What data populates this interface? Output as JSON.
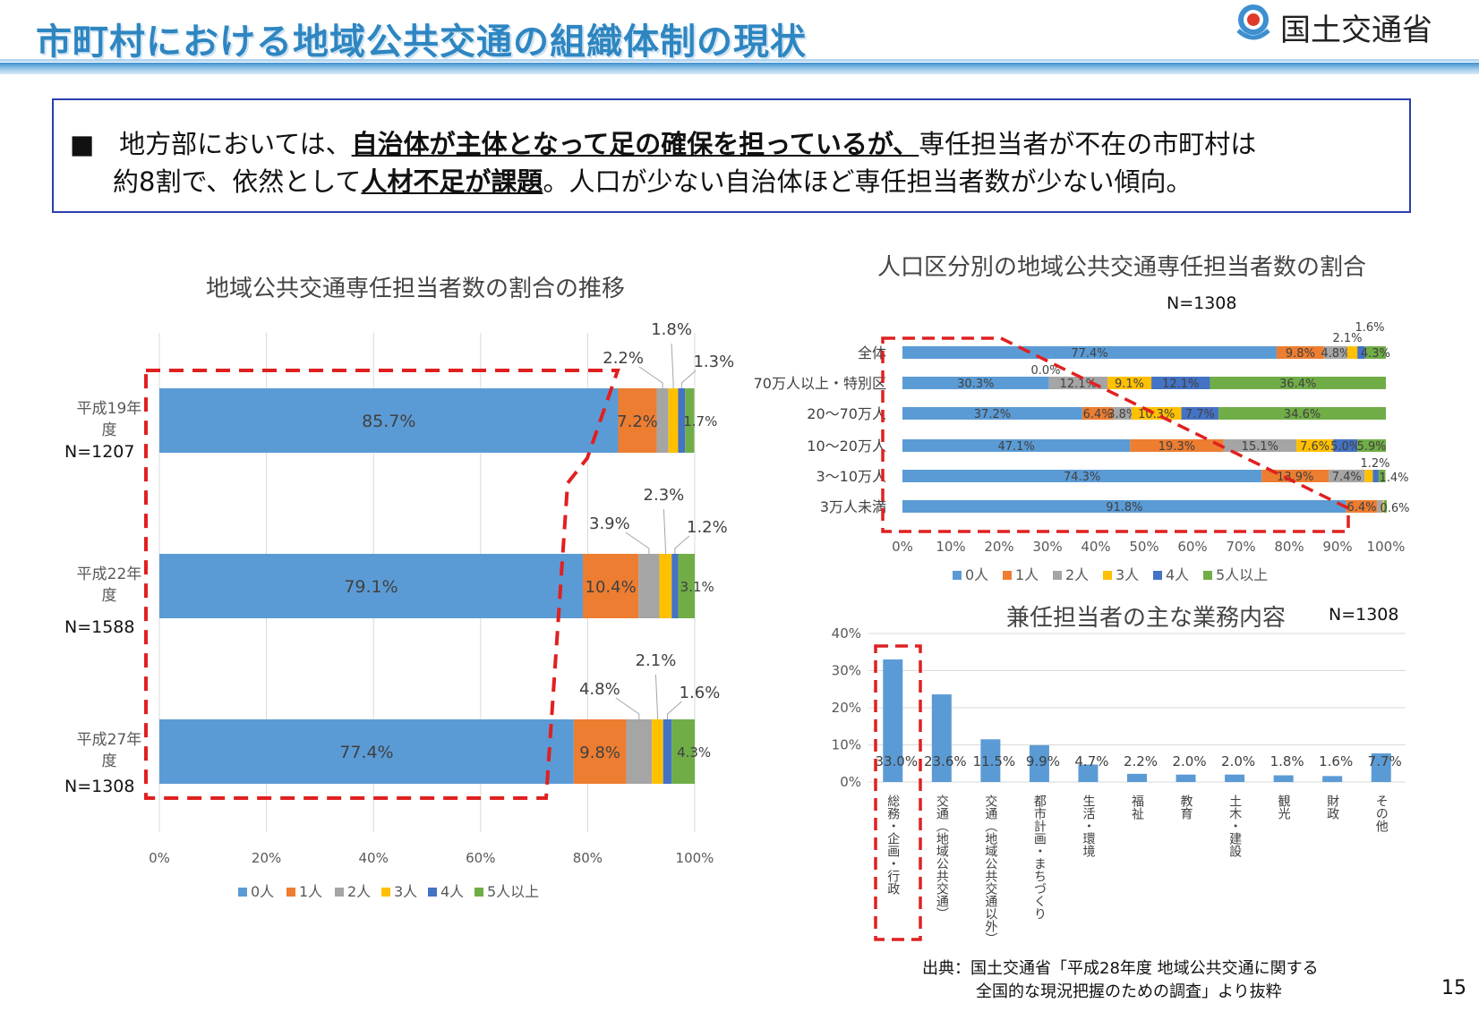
{
  "header": {
    "title": "市町村における地域公共交通の組織体制の現状",
    "ministry": "国土交通省"
  },
  "summary": {
    "bullet": "■",
    "line1_a": "地方部においては、",
    "line1_b": "自治体が主体となって足の確保を担っているが、",
    "line1_c": "専任担当者が不在の市町村は",
    "line2_a": "約8割で、依然として",
    "line2_b": "人材不足が課題",
    "line2_c": "。人口が少ない自治体ほど専任担当者数が少ない傾向。"
  },
  "chart1_labels": {
    "n": [
      "N=1207",
      "N=1588",
      "N=1308"
    ]
  },
  "chart2_labels": {
    "n": "N=1308"
  },
  "chart3_labels": {
    "n": "N=1308"
  },
  "legend_items": [
    "0人",
    "1人",
    "2人",
    "3人",
    "4人",
    "5人以上"
  ],
  "colors": {
    "s0": "#5b9bd5",
    "s1": "#ed7d31",
    "s2": "#a5a5a5",
    "s3": "#ffc000",
    "s4": "#4472c4",
    "s5": "#70ad47",
    "highlight": "#e02020",
    "title": "#2e86c1"
  },
  "footer": {
    "line1": "出典：国土交通省「平成28年度 地域公共交通に関する",
    "line2": "全国的な現況把握のための調査」より抜粋",
    "page": "15"
  },
  "chart_data": [
    {
      "type": "bar",
      "orientation": "horizontal-stacked-100",
      "title": "地域公共交通専任担当者数の割合の推移",
      "categories": [
        "平成19年度",
        "平成22年度",
        "平成27年度"
      ],
      "series": [
        {
          "name": "0人",
          "values": [
            85.7,
            79.1,
            77.4
          ]
        },
        {
          "name": "1人",
          "values": [
            7.2,
            10.4,
            9.8
          ]
        },
        {
          "name": "2人",
          "values": [
            2.2,
            3.9,
            4.8
          ]
        },
        {
          "name": "3人",
          "values": [
            1.8,
            2.3,
            2.1
          ]
        },
        {
          "name": "4人",
          "values": [
            1.3,
            1.2,
            1.6
          ]
        },
        {
          "name": "5人以上",
          "values": [
            1.7,
            3.1,
            4.3
          ]
        }
      ],
      "xticks": [
        "0%",
        "20%",
        "40%",
        "60%",
        "80%",
        "100%"
      ],
      "xlim": [
        0,
        100
      ],
      "legend": "bottom"
    },
    {
      "type": "bar",
      "orientation": "horizontal-stacked-100",
      "title": "人口区分別の地域公共交通専任担当者数の割合",
      "categories": [
        "全体",
        "70万人以上・特別区",
        "20～70万人",
        "10～20万人",
        "3～10万人",
        "3万人未満"
      ],
      "series": [
        {
          "name": "0人",
          "values": [
            77.4,
            30.3,
            37.2,
            47.1,
            74.3,
            91.8
          ]
        },
        {
          "name": "1人",
          "values": [
            9.8,
            0.0,
            6.4,
            19.3,
            13.9,
            6.4
          ]
        },
        {
          "name": "2人",
          "values": [
            4.8,
            12.1,
            3.8,
            15.1,
            7.4,
            1.2
          ]
        },
        {
          "name": "3人",
          "values": [
            2.1,
            9.1,
            10.3,
            7.6,
            1.7,
            0.2
          ]
        },
        {
          "name": "4人",
          "values": [
            1.6,
            12.1,
            7.7,
            5.0,
            1.2,
            0.0
          ]
        },
        {
          "name": "5人以上",
          "values": [
            4.3,
            36.4,
            34.6,
            5.9,
            1.4,
            0.6
          ]
        }
      ],
      "xticks": [
        "0%",
        "10%",
        "20%",
        "30%",
        "40%",
        "50%",
        "60%",
        "70%",
        "80%",
        "90%",
        "100%"
      ],
      "xlim": [
        0,
        100
      ],
      "legend": "bottom"
    },
    {
      "type": "bar",
      "orientation": "vertical",
      "title": "兼任担当者の主な業務内容",
      "categories": [
        "総務・企画・行政",
        "交通（地域公共交通）",
        "交通（地域公共交通以外）",
        "都市計画・まちづくり",
        "生活・環境",
        "福祉",
        "教育",
        "土木・建設",
        "観光",
        "財政",
        "その他"
      ],
      "values": [
        33.0,
        23.6,
        11.5,
        9.9,
        4.7,
        2.2,
        2.0,
        2.0,
        1.8,
        1.6,
        7.7
      ],
      "yticks": [
        "0%",
        "10%",
        "20%",
        "30%",
        "40%"
      ],
      "ylim": [
        0,
        40
      ]
    }
  ]
}
